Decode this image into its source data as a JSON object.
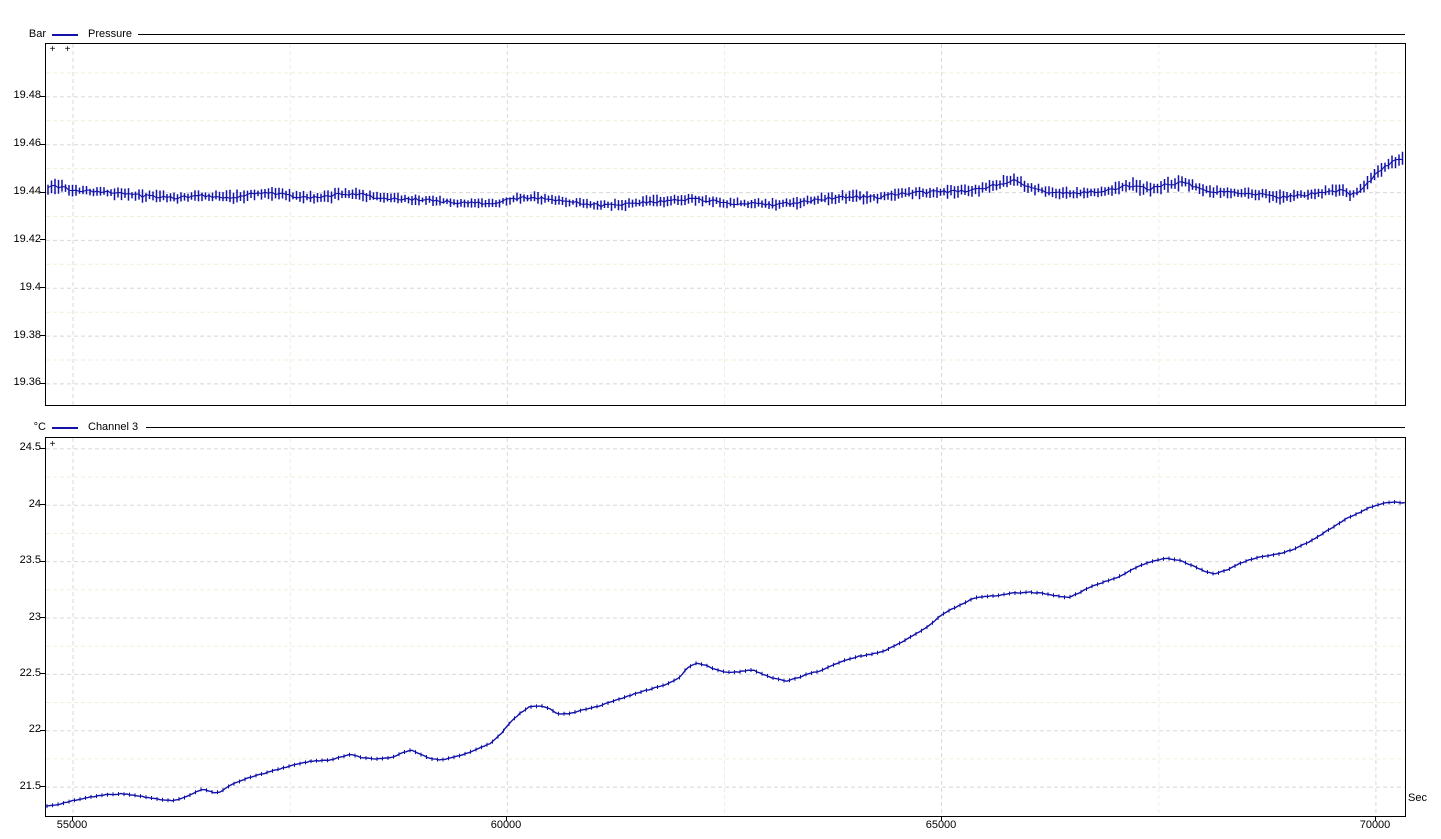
{
  "page": {
    "background": "#ffffff",
    "grid_major_color": "#d8d8d8",
    "grid_minor_color": "#f2edda"
  },
  "chart_data": [
    {
      "type": "line-minmax",
      "name": "Pressure",
      "unit": "Bar",
      "x_unit": "Sec",
      "color": "#1212aa",
      "legend_position": "top-left",
      "grid": true,
      "x_range": [
        54689,
        70335
      ],
      "y_range": [
        19.3512,
        19.5021
      ],
      "x_ticks": [
        55000,
        60000,
        65000,
        70000
      ],
      "x_minor": [
        57500,
        62500,
        67500
      ],
      "y_tick_labels": [
        "19.48",
        "19.46",
        "19.44",
        "19.42",
        "19.4",
        "19.38",
        "19.36"
      ],
      "y_tick_values": [
        19.48,
        19.46,
        19.44,
        19.42,
        19.4,
        19.38,
        19.36
      ],
      "y_minor": [
        19.49,
        19.47,
        19.45,
        19.43,
        19.41,
        19.39,
        19.37
      ],
      "handles": [
        "+",
        "+"
      ],
      "points_format": [
        "t_sec",
        "mean_bar",
        "half_range_bar"
      ],
      "points": [
        [
          54689,
          19.4417,
          0.003
        ],
        [
          54804,
          19.4425,
          0.0036
        ],
        [
          54977,
          19.4413,
          0.0032
        ],
        [
          55150,
          19.4404,
          0.0028
        ],
        [
          55322,
          19.4404,
          0.0025
        ],
        [
          55495,
          19.4396,
          0.0032
        ],
        [
          55725,
          19.4388,
          0.0028
        ],
        [
          55955,
          19.4383,
          0.003
        ],
        [
          56185,
          19.4379,
          0.0028
        ],
        [
          56415,
          19.4388,
          0.0024
        ],
        [
          56645,
          19.4383,
          0.0028
        ],
        [
          56933,
          19.4383,
          0.004
        ],
        [
          57105,
          19.4396,
          0.0028
        ],
        [
          57335,
          19.4396,
          0.0032
        ],
        [
          57565,
          19.4383,
          0.0028
        ],
        [
          57795,
          19.4379,
          0.003
        ],
        [
          58083,
          19.4392,
          0.0036
        ],
        [
          58256,
          19.4396,
          0.003
        ],
        [
          58486,
          19.4379,
          0.0024
        ],
        [
          58716,
          19.4375,
          0.0026
        ],
        [
          58946,
          19.4371,
          0.0024
        ],
        [
          59176,
          19.4367,
          0.0024
        ],
        [
          59406,
          19.4358,
          0.0021
        ],
        [
          59636,
          19.4354,
          0.0021
        ],
        [
          59866,
          19.4358,
          0.0024
        ],
        [
          60097,
          19.4375,
          0.0024
        ],
        [
          60327,
          19.4379,
          0.0028
        ],
        [
          60557,
          19.4367,
          0.0024
        ],
        [
          60787,
          19.4358,
          0.0024
        ],
        [
          61074,
          19.4346,
          0.0024
        ],
        [
          61362,
          19.435,
          0.003
        ],
        [
          61650,
          19.4363,
          0.0028
        ],
        [
          61937,
          19.4367,
          0.0028
        ],
        [
          62225,
          19.4371,
          0.0028
        ],
        [
          62513,
          19.4358,
          0.0024
        ],
        [
          62800,
          19.4354,
          0.0024
        ],
        [
          63088,
          19.435,
          0.0032
        ],
        [
          63376,
          19.4358,
          0.0028
        ],
        [
          63663,
          19.4375,
          0.0028
        ],
        [
          63951,
          19.4383,
          0.0034
        ],
        [
          64239,
          19.4379,
          0.0028
        ],
        [
          64526,
          19.4396,
          0.0028
        ],
        [
          64814,
          19.44,
          0.0028
        ],
        [
          65102,
          19.4404,
          0.003
        ],
        [
          65389,
          19.441,
          0.0032
        ],
        [
          65677,
          19.4437,
          0.0034
        ],
        [
          65849,
          19.445,
          0.0032
        ],
        [
          66022,
          19.4422,
          0.003
        ],
        [
          66252,
          19.4401,
          0.0028
        ],
        [
          66482,
          19.4397,
          0.0028
        ],
        [
          66712,
          19.4401,
          0.003
        ],
        [
          66942,
          19.4411,
          0.0032
        ],
        [
          67172,
          19.4429,
          0.004
        ],
        [
          67402,
          19.4415,
          0.0032
        ],
        [
          67632,
          19.4436,
          0.004
        ],
        [
          67805,
          19.4443,
          0.0036
        ],
        [
          67977,
          19.4415,
          0.003
        ],
        [
          68207,
          19.4401,
          0.0028
        ],
        [
          68437,
          19.4397,
          0.0028
        ],
        [
          68667,
          19.4394,
          0.0028
        ],
        [
          68897,
          19.438,
          0.0034
        ],
        [
          69128,
          19.4388,
          0.0026
        ],
        [
          69358,
          19.4401,
          0.0028
        ],
        [
          69588,
          19.4411,
          0.003
        ],
        [
          69726,
          19.4388,
          0.0028
        ],
        [
          69875,
          19.4429,
          0.0032
        ],
        [
          69990,
          19.4471,
          0.0032
        ],
        [
          70105,
          19.4508,
          0.0032
        ],
        [
          70220,
          19.4533,
          0.0032
        ],
        [
          70335,
          19.4546,
          0.003
        ]
      ]
    },
    {
      "type": "line",
      "name": "Channel 3",
      "unit": "°C",
      "x_unit": "Sec",
      "color": "#1212aa",
      "legend_position": "top-left",
      "grid": true,
      "x_range": [
        54689,
        70335
      ],
      "y_range": [
        21.2434,
        24.597
      ],
      "x_ticks": [
        55000,
        60000,
        65000,
        70000
      ],
      "x_tick_labels": [
        "55000",
        "60000",
        "65000",
        "70000"
      ],
      "x_minor": [
        57500,
        62500,
        67500
      ],
      "y_tick_labels": [
        "24.5",
        "24",
        "23.5",
        "23",
        "22.5",
        "22",
        "21.5"
      ],
      "y_tick_values": [
        24.5,
        24.0,
        23.5,
        23.0,
        22.5,
        22.0,
        21.5
      ],
      "y_minor": [
        24.25,
        23.75,
        23.25,
        22.75,
        22.25,
        21.75
      ],
      "handles": [
        "+"
      ],
      "points_format": [
        "t_sec",
        "value_degC"
      ],
      "points": [
        [
          54689,
          21.33
        ],
        [
          54850,
          21.35
        ],
        [
          55000,
          21.38
        ],
        [
          55150,
          21.405
        ],
        [
          55350,
          21.43
        ],
        [
          55550,
          21.44
        ],
        [
          55700,
          21.43
        ],
        [
          55850,
          21.41
        ],
        [
          56000,
          21.39
        ],
        [
          56150,
          21.38
        ],
        [
          56300,
          21.41
        ],
        [
          56400,
          21.45
        ],
        [
          56475,
          21.48
        ],
        [
          56550,
          21.47
        ],
        [
          56625,
          21.45
        ],
        [
          56700,
          21.46
        ],
        [
          56820,
          21.52
        ],
        [
          57050,
          21.59
        ],
        [
          57280,
          21.64
        ],
        [
          57510,
          21.69
        ],
        [
          57740,
          21.73
        ],
        [
          57970,
          21.74
        ],
        [
          58100,
          21.77
        ],
        [
          58200,
          21.79
        ],
        [
          58330,
          21.76
        ],
        [
          58500,
          21.75
        ],
        [
          58660,
          21.76
        ],
        [
          58810,
          21.81
        ],
        [
          58890,
          21.83
        ],
        [
          59000,
          21.79
        ],
        [
          59120,
          21.75
        ],
        [
          59235,
          21.74
        ],
        [
          59465,
          21.78
        ],
        [
          59695,
          21.85
        ],
        [
          59810,
          21.89
        ],
        [
          59925,
          21.97
        ],
        [
          60040,
          22.08
        ],
        [
          60155,
          22.16
        ],
        [
          60250,
          22.21
        ],
        [
          60400,
          22.22
        ],
        [
          60500,
          22.19
        ],
        [
          60575,
          22.15
        ],
        [
          60700,
          22.15
        ],
        [
          60900,
          22.19
        ],
        [
          61060,
          22.22
        ],
        [
          61250,
          22.27
        ],
        [
          61440,
          22.32
        ],
        [
          61650,
          22.37
        ],
        [
          61830,
          22.41
        ],
        [
          61980,
          22.47
        ],
        [
          62060,
          22.55
        ],
        [
          62175,
          22.6
        ],
        [
          62290,
          22.58
        ],
        [
          62400,
          22.54
        ],
        [
          62520,
          22.52
        ],
        [
          62650,
          22.52
        ],
        [
          62820,
          22.54
        ],
        [
          62950,
          22.5
        ],
        [
          63050,
          22.47
        ],
        [
          63210,
          22.44
        ],
        [
          63350,
          22.47
        ],
        [
          63440,
          22.5
        ],
        [
          63600,
          22.53
        ],
        [
          63740,
          22.58
        ],
        [
          63900,
          22.63
        ],
        [
          64050,
          22.66
        ],
        [
          64200,
          22.68
        ],
        [
          64350,
          22.71
        ],
        [
          64500,
          22.77
        ],
        [
          64660,
          22.84
        ],
        [
          64800,
          22.9
        ],
        [
          64900,
          22.96
        ],
        [
          65000,
          23.03
        ],
        [
          65120,
          23.08
        ],
        [
          65230,
          23.12
        ],
        [
          65380,
          23.18
        ],
        [
          65500,
          23.19
        ],
        [
          65650,
          23.2
        ],
        [
          65800,
          23.22
        ],
        [
          66000,
          23.23
        ],
        [
          66150,
          23.22
        ],
        [
          66300,
          23.2
        ],
        [
          66450,
          23.18
        ],
        [
          66600,
          23.23
        ],
        [
          66725,
          23.28
        ],
        [
          66870,
          23.32
        ],
        [
          66990,
          23.35
        ],
        [
          67150,
          23.41
        ],
        [
          67300,
          23.47
        ],
        [
          67450,
          23.51
        ],
        [
          67600,
          23.53
        ],
        [
          67750,
          23.51
        ],
        [
          67900,
          23.46
        ],
        [
          68050,
          23.41
        ],
        [
          68150,
          23.39
        ],
        [
          68300,
          23.43
        ],
        [
          68450,
          23.49
        ],
        [
          68600,
          23.53
        ],
        [
          68750,
          23.55
        ],
        [
          68900,
          23.57
        ],
        [
          69050,
          23.61
        ],
        [
          69220,
          23.67
        ],
        [
          69350,
          23.73
        ],
        [
          69450,
          23.78
        ],
        [
          69560,
          23.83
        ],
        [
          69680,
          23.89
        ],
        [
          69800,
          23.93
        ],
        [
          69900,
          23.97
        ],
        [
          70000,
          24.0
        ],
        [
          70100,
          24.02
        ],
        [
          70200,
          24.03
        ],
        [
          70335,
          24.02
        ]
      ]
    }
  ]
}
